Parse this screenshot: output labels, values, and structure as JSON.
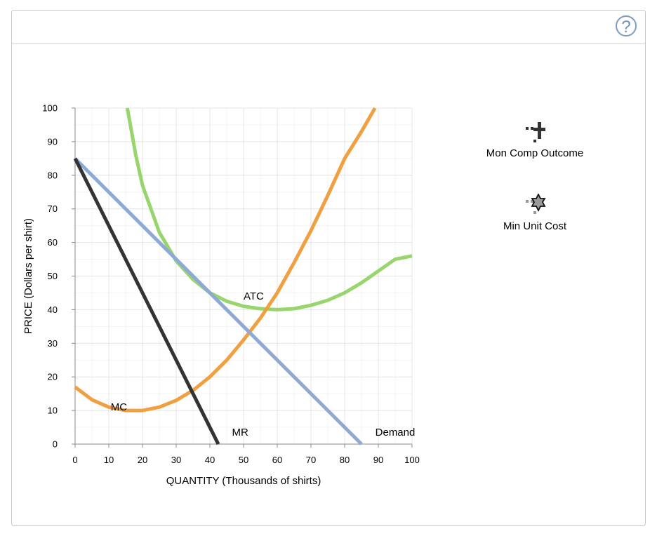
{
  "help": {
    "label": "?"
  },
  "legend": [
    {
      "label": "Mon Comp Outcome",
      "icon": "plus-marker-icon",
      "color": "#333333"
    },
    {
      "label": "Min Unit Cost",
      "icon": "star-marker-icon",
      "color": "#888888"
    }
  ],
  "chart_data": {
    "type": "line",
    "xlabel": "QUANTITY (Thousands of shirts)",
    "ylabel": "PRICE (Dollars per shirt)",
    "xlim": [
      0,
      100
    ],
    "ylim": [
      0,
      100
    ],
    "x_ticks": [
      0,
      10,
      20,
      30,
      40,
      50,
      60,
      70,
      80,
      90,
      100
    ],
    "y_ticks": [
      0,
      10,
      20,
      30,
      40,
      50,
      60,
      70,
      80,
      90,
      100
    ],
    "grid": true,
    "series": [
      {
        "name": "Demand",
        "color": "#8eaad4",
        "points": [
          [
            0,
            85
          ],
          [
            85,
            0
          ]
        ]
      },
      {
        "name": "MR",
        "color": "#333333",
        "points": [
          [
            0,
            85
          ],
          [
            42.5,
            0
          ]
        ]
      },
      {
        "name": "MC",
        "color": "#f0a040",
        "points": [
          [
            0,
            17
          ],
          [
            5,
            13.2
          ],
          [
            10,
            11
          ],
          [
            15,
            10
          ],
          [
            20,
            10
          ],
          [
            25,
            11
          ],
          [
            30,
            13
          ],
          [
            35,
            16
          ],
          [
            40,
            20
          ],
          [
            45,
            25
          ],
          [
            50,
            31
          ],
          [
            55,
            37.5
          ],
          [
            60,
            45
          ],
          [
            65,
            54
          ],
          [
            70,
            63.5
          ],
          [
            75,
            74
          ],
          [
            80,
            85
          ],
          [
            85,
            93
          ],
          [
            89,
            100
          ]
        ]
      },
      {
        "name": "ATC",
        "color": "#98d66d",
        "points": [
          [
            15.5,
            100
          ],
          [
            18,
            86
          ],
          [
            20,
            77
          ],
          [
            25,
            63
          ],
          [
            30,
            54.5
          ],
          [
            35,
            49
          ],
          [
            40,
            45
          ],
          [
            45,
            42.5
          ],
          [
            50,
            41
          ],
          [
            55,
            40.3
          ],
          [
            60,
            40
          ],
          [
            65,
            40.3
          ],
          [
            70,
            41.3
          ],
          [
            75,
            42.8
          ],
          [
            80,
            45
          ],
          [
            85,
            48
          ],
          [
            90,
            51.5
          ],
          [
            95,
            55
          ],
          [
            100,
            56
          ]
        ]
      }
    ],
    "labels": [
      {
        "text": "ATC",
        "x": 53,
        "y": 43
      },
      {
        "text": "MC",
        "x": 13,
        "y": 10
      },
      {
        "text": "MR",
        "x": 49,
        "y": 2.5
      },
      {
        "text": "Demand",
        "x": 95,
        "y": 2.5
      }
    ]
  }
}
